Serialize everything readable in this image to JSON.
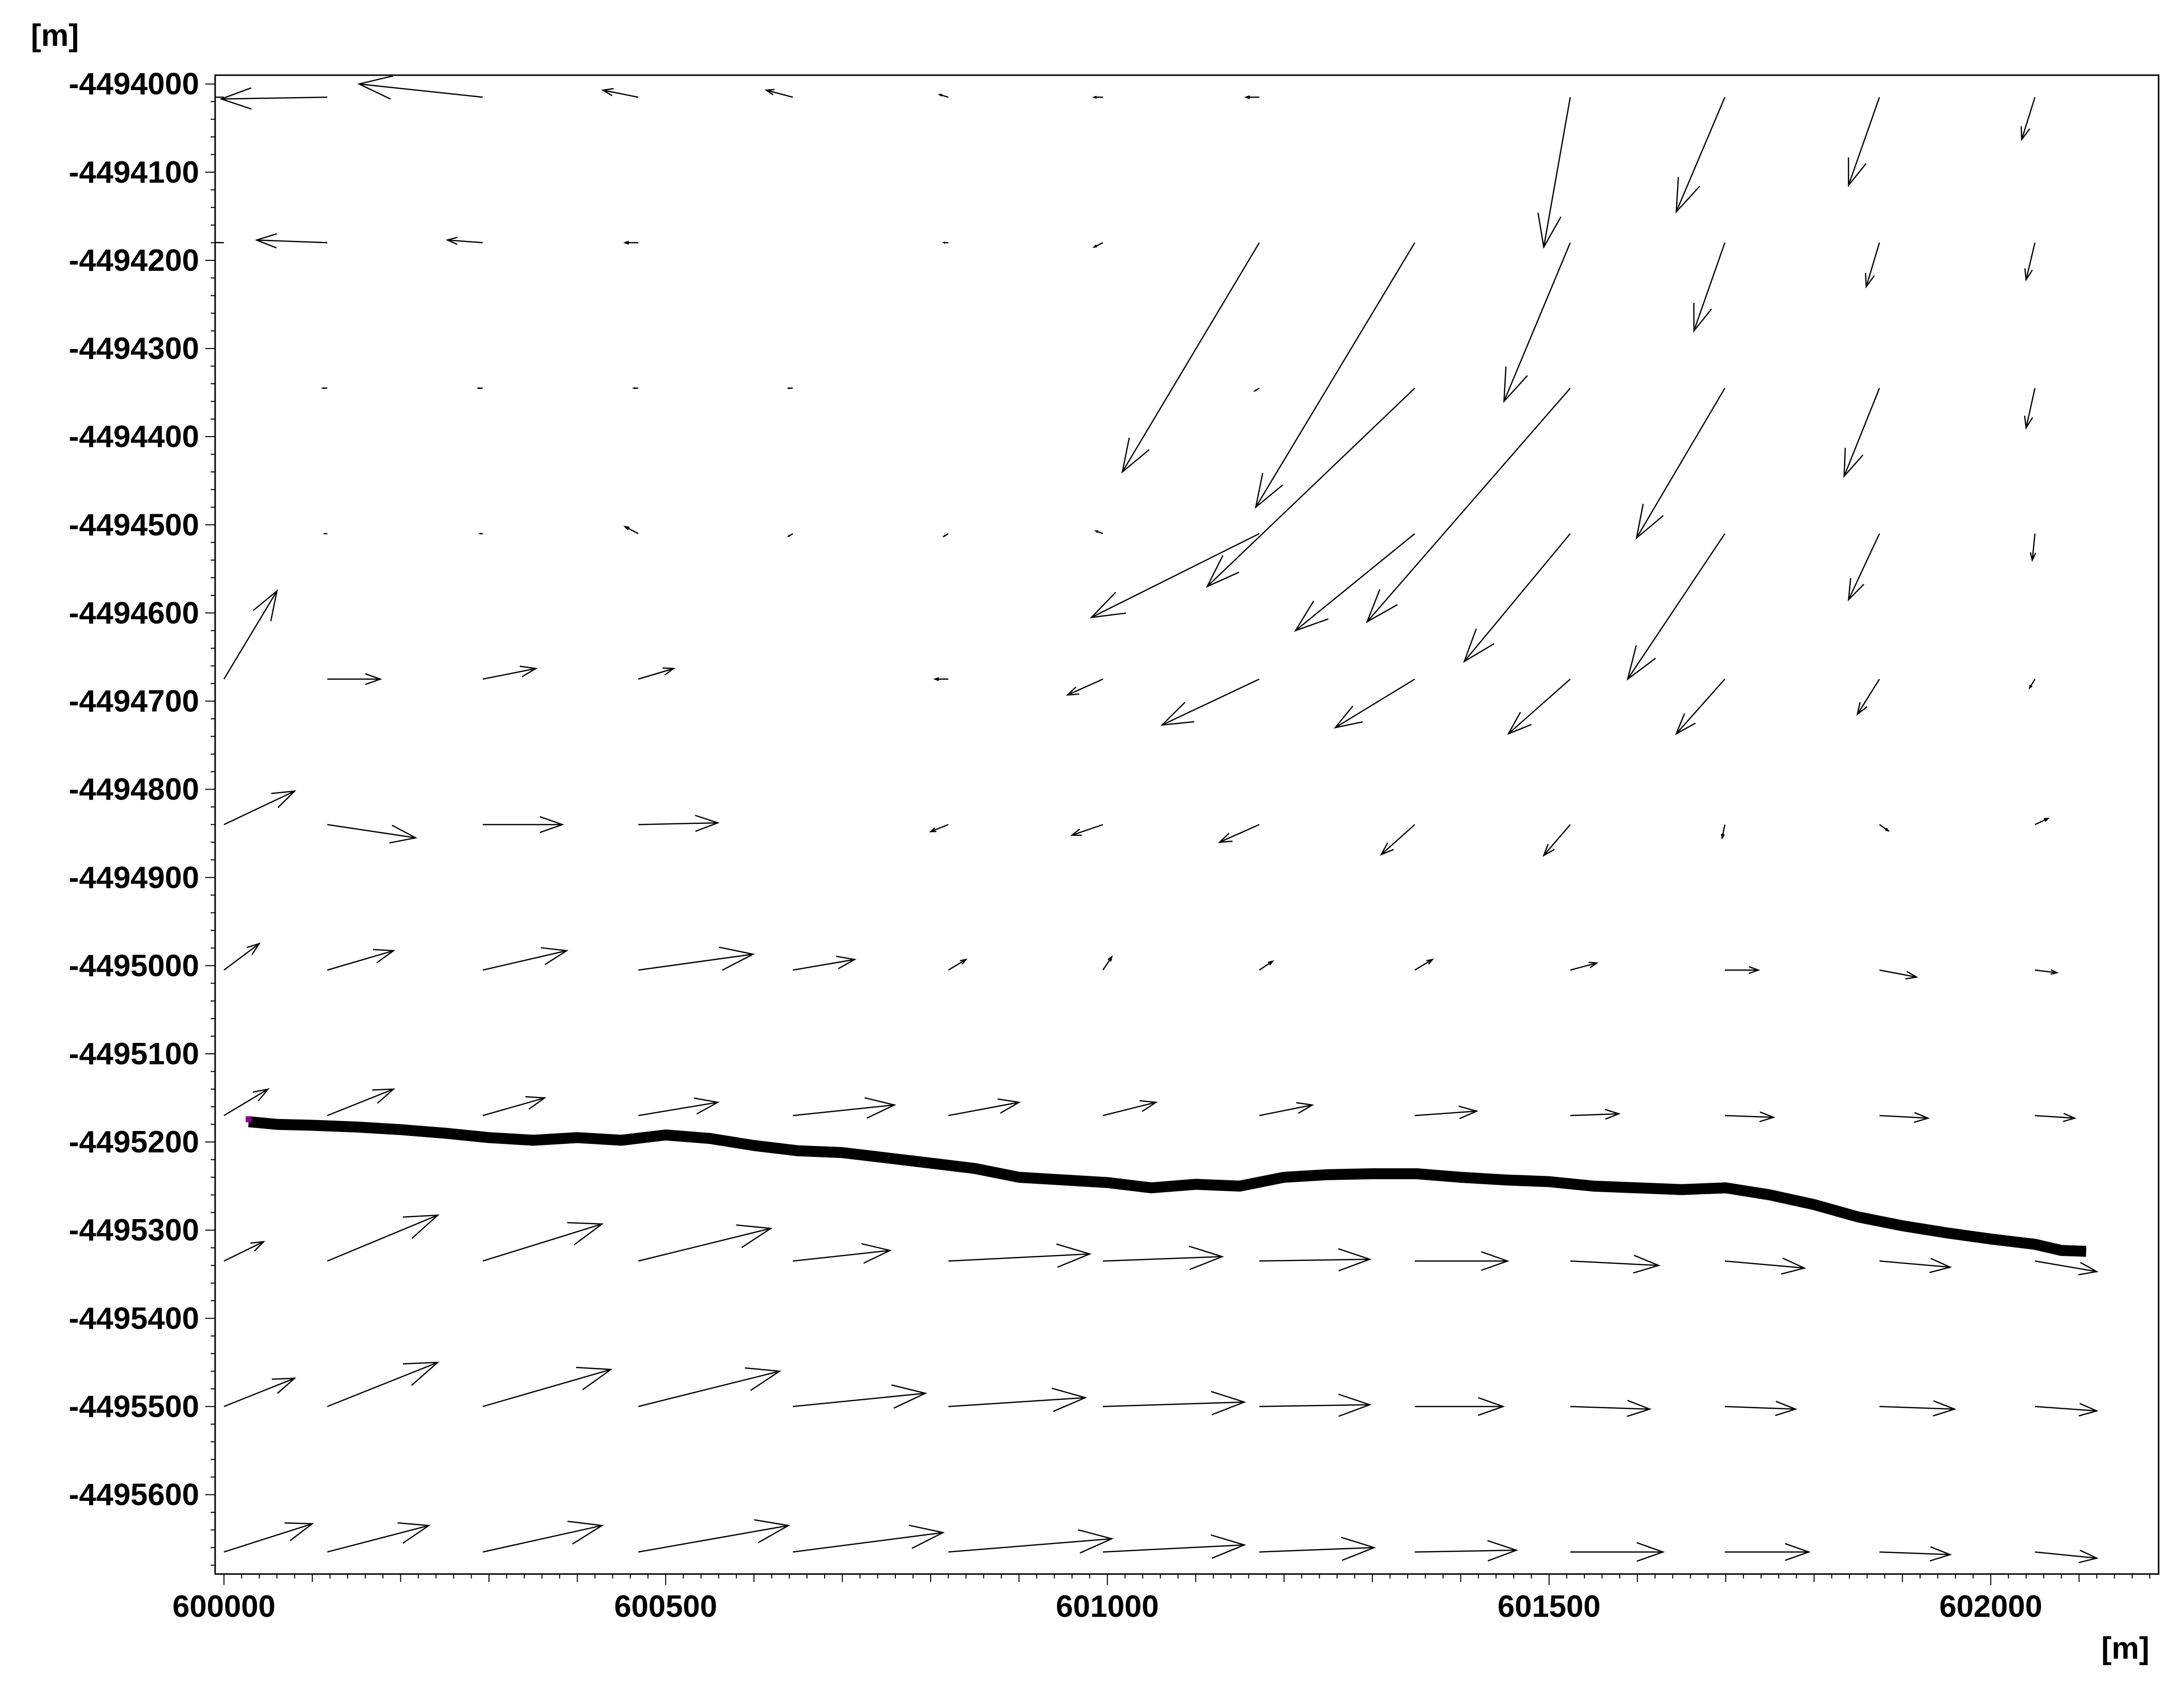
{
  "chart_data": {
    "type": "vector-field",
    "xlabel": "[m]",
    "ylabel": "[m]",
    "xlim": [
      599990,
      602190
    ],
    "ylim": [
      -4495690,
      -4493990
    ],
    "x_ticks": [
      600000,
      600500,
      601000,
      601500,
      602000
    ],
    "y_ticks": [
      -4494000,
      -4494100,
      -4494200,
      -4494300,
      -4494400,
      -4494500,
      -4494600,
      -4494700,
      -4494800,
      -4494900,
      -4495000,
      -4495100,
      -4495200,
      -4495300,
      -4495400,
      -4495500,
      -4495600
    ],
    "x_tick_labels": [
      "600000",
      "600500",
      "601000",
      "601500",
      "602000"
    ],
    "y_tick_labels": [
      "-4494000",
      "-4494100",
      "-4494200",
      "-4494300",
      "-4494400",
      "-4494500",
      "-4494600",
      "-4494700",
      "-4494800",
      "-4494900",
      "-4495000",
      "-4495100",
      "-4495200",
      "-4495300",
      "-4495400",
      "-4495500",
      "-4495600"
    ],
    "grid": false,
    "vectors": {
      "x_grid": [
        600000,
        600117,
        600293,
        600469,
        600644,
        600820,
        600995,
        601172,
        601348,
        601524,
        601699,
        601874,
        602050
      ],
      "y_grid": [
        -4494015,
        -4494180,
        -4494345,
        -4494510,
        -4494675,
        -4494840,
        -4495005,
        -4495170,
        -4495335,
        -4495500,
        -4495665
      ],
      "rows": [
        [
          [
            -190,
            0
          ],
          [
            -120,
            -2
          ],
          [
            -140,
            15
          ],
          [
            -40,
            8
          ],
          [
            -30,
            8
          ],
          [
            -10,
            3
          ],
          [
            -10,
            0
          ],
          [
            -15,
            0
          ],
          [
            0,
            0
          ],
          [
            -30,
            -170
          ],
          [
            -55,
            -130
          ],
          [
            -35,
            -100
          ],
          [
            -15,
            -48
          ]
        ],
        [
          [
            -80,
            2
          ],
          [
            -80,
            3
          ],
          [
            -40,
            3
          ],
          [
            -15,
            0
          ],
          [
            0,
            0
          ],
          [
            -5,
            0
          ],
          [
            -10,
            -5
          ],
          [
            -155,
            -260
          ],
          [
            -180,
            -300
          ],
          [
            -75,
            -180
          ],
          [
            -35,
            -100
          ],
          [
            -15,
            -50
          ],
          [
            -10,
            -42
          ]
        ],
        [
          [
            0,
            0
          ],
          [
            -5,
            0
          ],
          [
            -5,
            0
          ],
          [
            -5,
            0
          ],
          [
            -5,
            0
          ],
          [
            0,
            0
          ],
          [
            0,
            0
          ],
          [
            -5,
            -3
          ],
          [
            -235,
            -225
          ],
          [
            -230,
            -265
          ],
          [
            -100,
            -170
          ],
          [
            -40,
            -100
          ],
          [
            -10,
            -45
          ]
        ],
        [
          [
            0,
            0
          ],
          [
            -3,
            0
          ],
          [
            -3,
            0
          ],
          [
            -15,
            8
          ],
          [
            -5,
            -3
          ],
          [
            -5,
            -3
          ],
          [
            -8,
            3
          ],
          [
            -190,
            -95
          ],
          [
            -135,
            -110
          ],
          [
            -120,
            -145
          ],
          [
            -110,
            -165
          ],
          [
            -35,
            -75
          ],
          [
            -3,
            -30
          ]
        ],
        [
          [
            60,
            100
          ],
          [
            60,
            0
          ],
          [
            60,
            12
          ],
          [
            40,
            12
          ],
          [
            0,
            0
          ],
          [
            -15,
            0
          ],
          [
            -40,
            -18
          ],
          [
            -110,
            -52
          ],
          [
            -90,
            -55
          ],
          [
            -70,
            -62
          ],
          [
            -55,
            -62
          ],
          [
            -25,
            -40
          ],
          [
            -6,
            -10
          ]
        ],
        [
          [
            80,
            38
          ],
          [
            100,
            -15
          ],
          [
            90,
            0
          ],
          [
            90,
            2
          ],
          [
            0,
            0
          ],
          [
            -20,
            -8
          ],
          [
            -35,
            -12
          ],
          [
            -45,
            -20
          ],
          [
            -38,
            -34
          ],
          [
            -30,
            -35
          ],
          [
            -3,
            -15
          ],
          [
            10,
            -7
          ],
          [
            15,
            7
          ]
        ],
        [
          [
            40,
            30
          ],
          [
            75,
            22
          ],
          [
            95,
            22
          ],
          [
            130,
            18
          ],
          [
            70,
            12
          ],
          [
            20,
            12
          ],
          [
            10,
            15
          ],
          [
            15,
            10
          ],
          [
            20,
            12
          ],
          [
            30,
            8
          ],
          [
            38,
            0
          ],
          [
            42,
            -8
          ],
          [
            25,
            -3
          ]
        ],
        [
          [
            50,
            30
          ],
          [
            75,
            30
          ],
          [
            70,
            20
          ],
          [
            90,
            15
          ],
          [
            115,
            12
          ],
          [
            80,
            15
          ],
          [
            60,
            15
          ],
          [
            60,
            12
          ],
          [
            70,
            5
          ],
          [
            55,
            2
          ],
          [
            55,
            -2
          ],
          [
            55,
            -3
          ],
          [
            45,
            -3
          ]
        ],
        [
          [
            45,
            22
          ],
          [
            125,
            52
          ],
          [
            135,
            42
          ],
          [
            150,
            37
          ],
          [
            110,
            12
          ],
          [
            160,
            8
          ],
          [
            135,
            5
          ],
          [
            125,
            2
          ],
          [
            105,
            0
          ],
          [
            100,
            -5
          ],
          [
            90,
            -8
          ],
          [
            80,
            -7
          ],
          [
            70,
            -12
          ]
        ],
        [
          [
            80,
            32
          ],
          [
            125,
            50
          ],
          [
            145,
            42
          ],
          [
            160,
            40
          ],
          [
            150,
            15
          ],
          [
            155,
            10
          ],
          [
            160,
            5
          ],
          [
            125,
            2
          ],
          [
            100,
            0
          ],
          [
            90,
            -3
          ],
          [
            80,
            -3
          ],
          [
            85,
            -3
          ],
          [
            70,
            -5
          ]
        ],
        [
          [
            100,
            32
          ],
          [
            115,
            30
          ],
          [
            135,
            30
          ],
          [
            170,
            30
          ],
          [
            170,
            22
          ],
          [
            185,
            15
          ],
          [
            160,
            8
          ],
          [
            130,
            5
          ],
          [
            115,
            2
          ],
          [
            105,
            0
          ],
          [
            95,
            0
          ],
          [
            80,
            -3
          ],
          [
            70,
            -7
          ]
        ]
      ]
    },
    "profile_line": [
      [
        600028,
        -4495177
      ],
      [
        600060,
        -4495180
      ],
      [
        600100,
        -4495181
      ],
      [
        600150,
        -4495183
      ],
      [
        600200,
        -4495186
      ],
      [
        600250,
        -4495190
      ],
      [
        600300,
        -4495195
      ],
      [
        600350,
        -4495198
      ],
      [
        600400,
        -4495195
      ],
      [
        600450,
        -4495198
      ],
      [
        600500,
        -4495192
      ],
      [
        600550,
        -4495196
      ],
      [
        600600,
        -4495204
      ],
      [
        600650,
        -4495210
      ],
      [
        600700,
        -4495212
      ],
      [
        600750,
        -4495218
      ],
      [
        600800,
        -4495224
      ],
      [
        600850,
        -4495230
      ],
      [
        600900,
        -4495240
      ],
      [
        600950,
        -4495243
      ],
      [
        601000,
        -4495246
      ],
      [
        601050,
        -4495252
      ],
      [
        601100,
        -4495248
      ],
      [
        601150,
        -4495250
      ],
      [
        601200,
        -4495240
      ],
      [
        601250,
        -4495237
      ],
      [
        601300,
        -4495236
      ],
      [
        601350,
        -4495236
      ],
      [
        601400,
        -4495240
      ],
      [
        601450,
        -4495243
      ],
      [
        601500,
        -4495245
      ],
      [
        601550,
        -4495250
      ],
      [
        601600,
        -4495252
      ],
      [
        601650,
        -4495254
      ],
      [
        601700,
        -4495252
      ],
      [
        601750,
        -4495260
      ],
      [
        601800,
        -4495271
      ],
      [
        601850,
        -4495285
      ],
      [
        601900,
        -4495295
      ],
      [
        601950,
        -4495303
      ],
      [
        602000,
        -4495310
      ],
      [
        602050,
        -4495316
      ],
      [
        602080,
        -4495323
      ],
      [
        602108,
        -4495324
      ]
    ]
  }
}
